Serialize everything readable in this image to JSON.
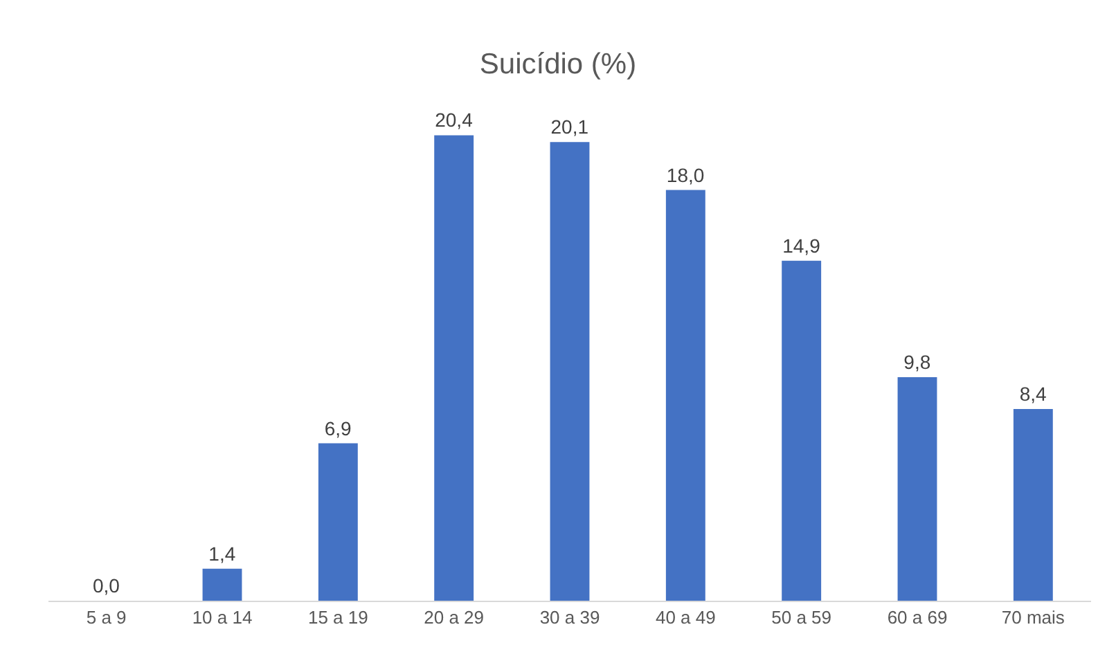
{
  "chart_data": {
    "type": "bar",
    "title": "Suicídio (%)",
    "categories": [
      "5 a 9",
      "10 a 14",
      "15 a 19",
      "20 a 29",
      "30 a 39",
      "40 a 49",
      "50 a 59",
      "60 a 69",
      "70 mais"
    ],
    "values": [
      0.0,
      1.4,
      6.9,
      20.4,
      20.1,
      18.0,
      14.9,
      9.8,
      8.4
    ],
    "value_labels": [
      "0,0",
      "1,4",
      "6,9",
      "20,4",
      "20,1",
      "18,0",
      "14,9",
      "9,8",
      "8,4"
    ],
    "color": "#4472c4",
    "grid": false,
    "legend": false,
    "tick_labels": "x"
  }
}
